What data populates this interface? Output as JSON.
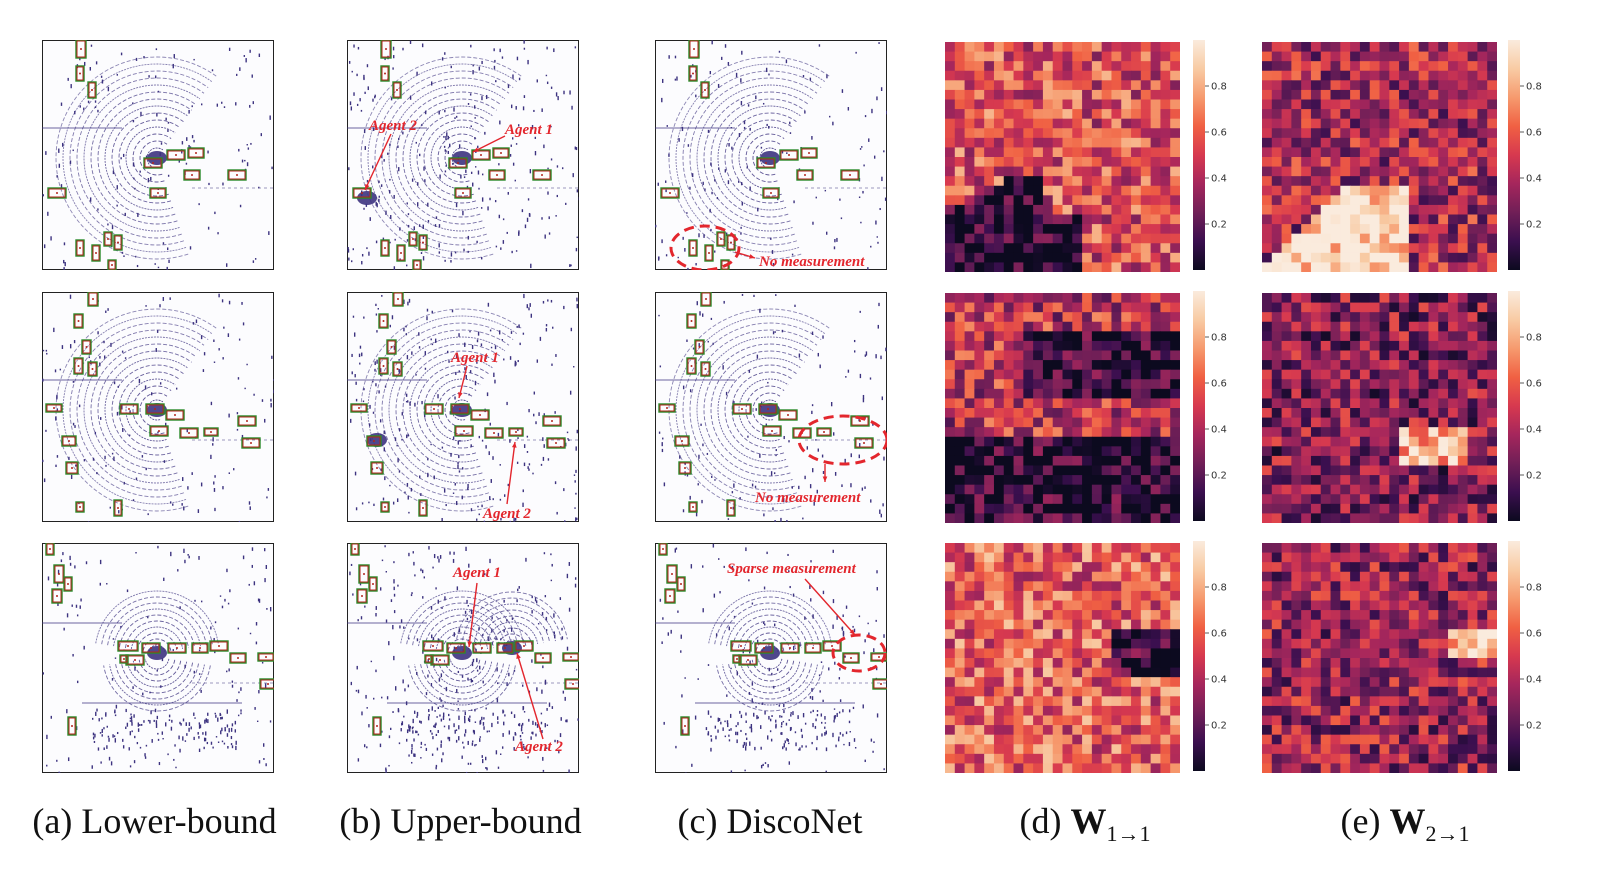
{
  "columns": [
    {
      "label": "(a)",
      "name": "Lower-bound"
    },
    {
      "label": "(b)",
      "name": "Upper-bound"
    },
    {
      "label": "(c)",
      "name": "DiscoNet"
    },
    {
      "label": "(d)",
      "math_main": "W",
      "math_sub": "1→1"
    },
    {
      "label": "(e)",
      "math_main": "W",
      "math_sub": "2→1"
    }
  ],
  "annotations": {
    "agent1": "Agent 1",
    "agent2": "Agent 2",
    "no_measurement": "No measurement",
    "sparse_measurement": "Sparse measurement"
  },
  "colorbar": {
    "ticks": [
      "0.8",
      "0.6",
      "0.4",
      "0.2"
    ],
    "tick_values": [
      0.8,
      0.6,
      0.4,
      0.2
    ],
    "range": [
      0,
      1
    ],
    "colormap": [
      "#0c0a1f",
      "#3b0f4f",
      "#701f57",
      "#a5265c",
      "#d7394f",
      "#f06043",
      "#f69a6e",
      "#f8cba4",
      "#faebdd"
    ]
  },
  "colors": {
    "lidar": "#3d3380",
    "pred_box": "#b3261e",
    "gt_box": "#2a8a2a",
    "annotation": "#e3262d"
  }
}
